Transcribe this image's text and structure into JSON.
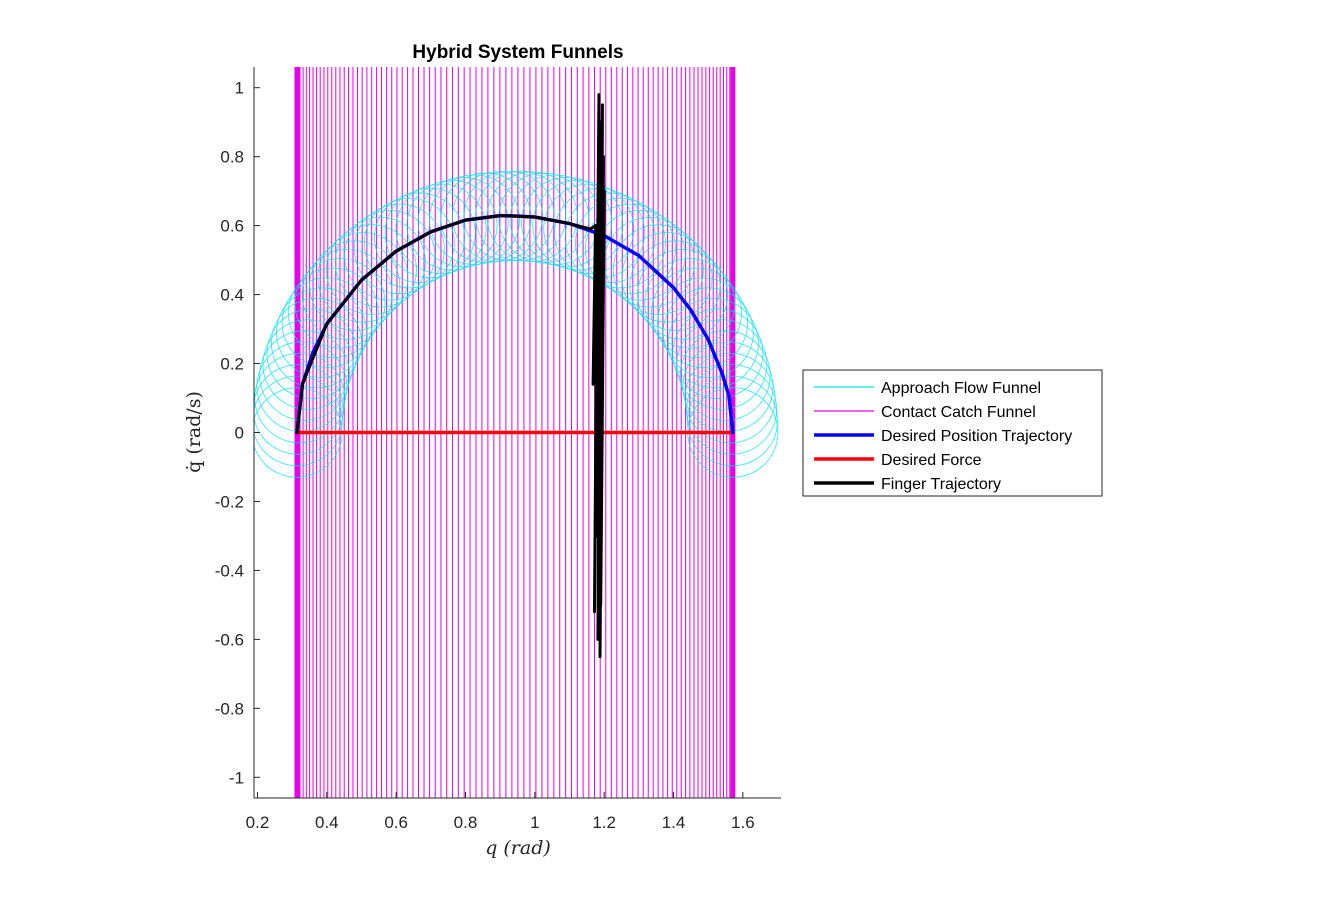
{
  "chart_data": {
    "type": "line",
    "title": "Hybrid System Funnels",
    "xlabel": "q (rad)",
    "ylabel": "q̇ (rad/s)",
    "xlim": [
      0.19,
      1.71
    ],
    "ylim": [
      -1.06,
      1.06
    ],
    "xticks": [
      0.2,
      0.4,
      0.6,
      0.8,
      1,
      1.2,
      1.4,
      1.6
    ],
    "xtick_labels": [
      "0.2",
      "0.4",
      "0.6",
      "0.8",
      "1",
      "1.2",
      "1.4",
      "1.6"
    ],
    "yticks": [
      1,
      0.8,
      0.6,
      0.4,
      0.2,
      0,
      -0.2,
      -0.4,
      -0.6,
      -0.8,
      -1
    ],
    "ytick_labels": [
      "1",
      "0.8",
      "0.6",
      "0.4",
      "0.2",
      "0",
      "-0.2",
      "-0.4",
      "-0.6",
      "-0.8",
      "-1"
    ],
    "grid": false,
    "legend_position": "right, outside plot",
    "series": [
      {
        "name": "Approach Flow Funnel",
        "color": "#00e5ee",
        "style": "ellipses",
        "center_path": {
          "q_start": 0.314,
          "q_end": 1.571,
          "peak_qdot": 0.628
        },
        "ellipse_count": 60,
        "radius_q": 0.13,
        "radius_qdot": 0.13
      },
      {
        "name": "Contact Catch Funnel",
        "color": "#e800e8",
        "style": "vertical lines",
        "q_values_start": 0.314,
        "q_values_end": 1.571,
        "line_count": 90,
        "qdot_range": [
          -1.06,
          1.06
        ]
      },
      {
        "name": "Desired Position Trajectory",
        "color": "#0000ff",
        "points": [
          [
            0.314,
            0.0
          ],
          [
            0.33,
            0.141
          ],
          [
            0.36,
            0.232
          ],
          [
            0.4,
            0.315
          ],
          [
            0.5,
            0.442
          ],
          [
            0.6,
            0.526
          ],
          [
            0.7,
            0.582
          ],
          [
            0.8,
            0.616
          ],
          [
            0.9,
            0.629
          ],
          [
            0.943,
            0.628
          ],
          [
            1.0,
            0.625
          ],
          [
            1.1,
            0.606
          ],
          [
            1.2,
            0.571
          ],
          [
            1.3,
            0.513
          ],
          [
            1.4,
            0.42
          ],
          [
            1.45,
            0.355
          ],
          [
            1.5,
            0.27
          ],
          [
            1.54,
            0.172
          ],
          [
            1.56,
            0.106
          ],
          [
            1.571,
            0.0
          ]
        ]
      },
      {
        "name": "Desired Force",
        "color": "#ff0000",
        "points": [
          [
            0.314,
            0.0
          ],
          [
            1.571,
            0.0
          ]
        ]
      },
      {
        "name": "Finger Trajectory",
        "color": "#000000",
        "points": [
          [
            0.314,
            0.0
          ],
          [
            0.33,
            0.141
          ],
          [
            0.4,
            0.315
          ],
          [
            0.5,
            0.442
          ],
          [
            0.6,
            0.526
          ],
          [
            0.7,
            0.582
          ],
          [
            0.8,
            0.616
          ],
          [
            0.9,
            0.629
          ],
          [
            1.0,
            0.625
          ],
          [
            1.1,
            0.606
          ],
          [
            1.16,
            0.59
          ],
          [
            1.175,
            0.6
          ],
          [
            1.168,
            0.14
          ],
          [
            1.18,
            0.55
          ],
          [
            1.172,
            -0.52
          ],
          [
            1.185,
            0.98
          ],
          [
            1.178,
            -0.3
          ],
          [
            1.19,
            0.9
          ],
          [
            1.182,
            -0.6
          ],
          [
            1.195,
            0.95
          ],
          [
            1.188,
            -0.65
          ],
          [
            1.198,
            0.8
          ],
          [
            1.19,
            -0.5
          ],
          [
            1.2,
            0.7
          ],
          [
            1.192,
            -0.26
          ],
          [
            1.196,
            0.3
          ]
        ]
      }
    ]
  }
}
